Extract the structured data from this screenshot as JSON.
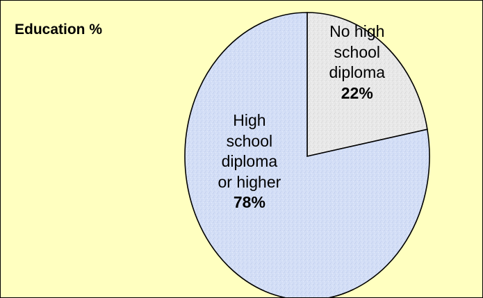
{
  "chart_data": {
    "type": "pie",
    "title": "Education %",
    "slices": [
      {
        "label_lines": [
          "No high",
          "school",
          "diploma"
        ],
        "value": 22,
        "value_label": "22%",
        "color": "#e6e6e6"
      },
      {
        "label_lines": [
          "High",
          "school",
          "diploma",
          "or higher"
        ],
        "value": 78,
        "value_label": "78%",
        "color": "#cfdcf5"
      }
    ],
    "start_angle": "12 o'clock",
    "direction": "clockwise",
    "legend": "none",
    "background": "#ffffc0"
  }
}
